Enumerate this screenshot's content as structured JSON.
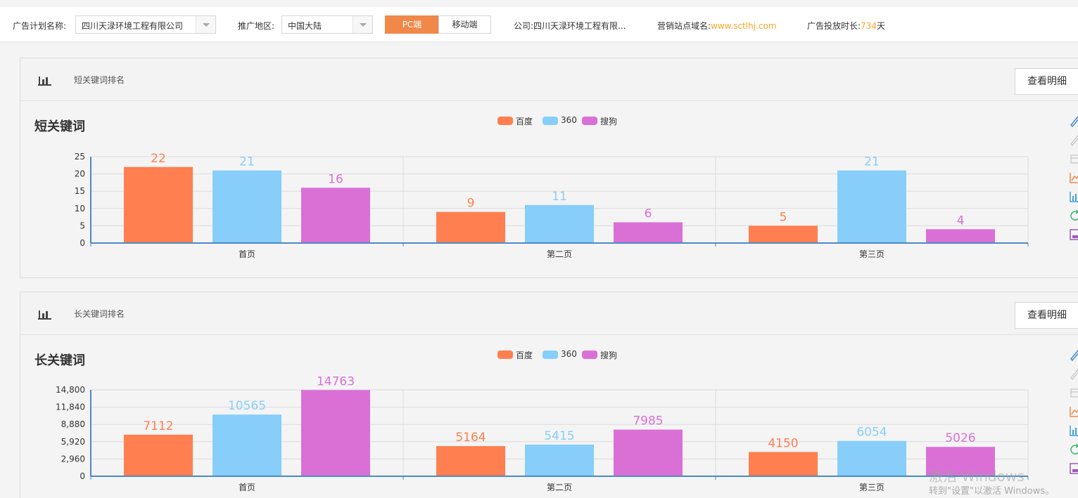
{
  "filters": {
    "plan_label": "广告计划名称:",
    "plan_value": "四川天渌环境工程有限公司",
    "region_label": "推广地区:",
    "region_value": "中国大陆",
    "device_tabs": [
      "PC端",
      "移动端"
    ],
    "active_tab": "PC端",
    "company_label": "公司:",
    "company_value": "四川天渌环境工程有限...",
    "domain_label": "营销站点域名:",
    "domain_value": "www.sctlhj.com",
    "duration_label": "广告投放时长:",
    "duration_value": "734",
    "duration_unit": "天"
  },
  "colors": {
    "accent": "#f0884a",
    "baidu": "#ff7f50",
    "s360": "#87cefa",
    "sogou": "#da70d6",
    "axis": "#4a8ac8",
    "highlight": "#f5a623"
  },
  "panels": [
    {
      "header_title": "短关键词排名",
      "detail_button": "查看明细",
      "chart_title": "短关键词"
    },
    {
      "header_title": "长关键词排名",
      "detail_button": "查看明细",
      "chart_title": "长关键词"
    }
  ],
  "chart_data": [
    {
      "type": "bar",
      "title": "短关键词",
      "categories": [
        "首页",
        "第二页",
        "第三页"
      ],
      "series": [
        {
          "name": "百度",
          "values": [
            22,
            9,
            5
          ]
        },
        {
          "name": "360",
          "values": [
            21,
            11,
            21
          ]
        },
        {
          "name": "搜狗",
          "values": [
            16,
            6,
            4
          ]
        }
      ],
      "ylim": [
        0,
        25
      ],
      "yticks": [
        "0",
        "5",
        "10",
        "15",
        "20",
        "25"
      ],
      "legend": "top-center",
      "grid": true
    },
    {
      "type": "bar",
      "title": "长关键词",
      "categories": [
        "首页",
        "第二页",
        "第三页"
      ],
      "series": [
        {
          "name": "百度",
          "values": [
            7112,
            5164,
            4150
          ]
        },
        {
          "name": "360",
          "values": [
            10565,
            5415,
            6054
          ]
        },
        {
          "name": "搜狗",
          "values": [
            14763,
            7985,
            5026
          ]
        }
      ],
      "ylim": [
        0,
        14800
      ],
      "yticks": [
        "0",
        "2,960",
        "5,920",
        "8,880",
        "11,840",
        "14,800"
      ],
      "legend": "top-center",
      "grid": true
    }
  ],
  "toolbox_icons": [
    "edit-icon",
    "edit-disabled-icon",
    "data-view-icon",
    "line-chart-icon",
    "bar-chart-icon",
    "refresh-icon",
    "save-image-icon"
  ],
  "watermark": {
    "line1": "激活 Windows",
    "line2": "转到\"设置\"以激活 Windows。"
  }
}
